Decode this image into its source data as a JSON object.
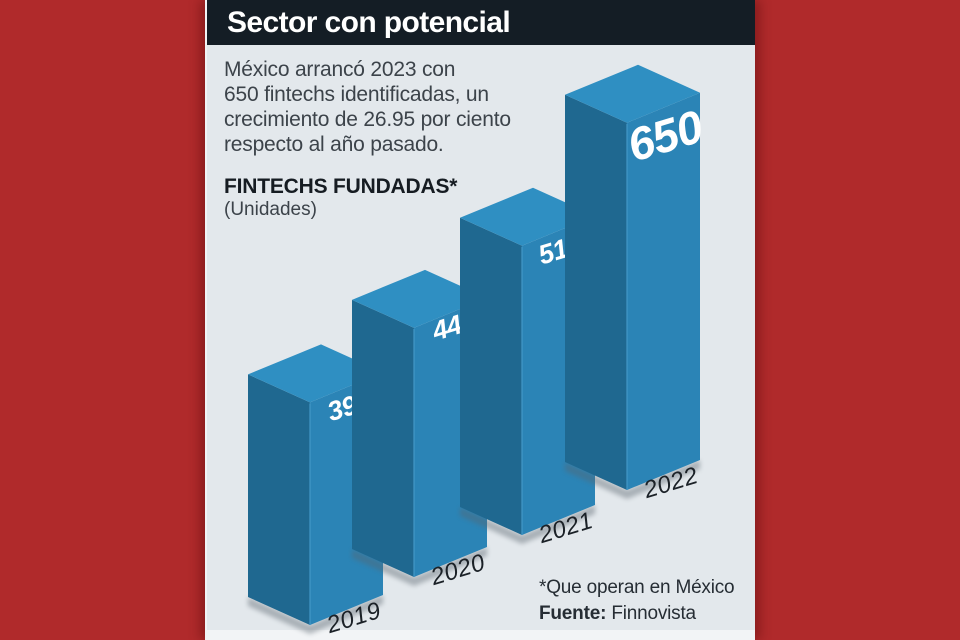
{
  "theme": {
    "background": "#b02a2b",
    "panel": "#e3e8ec",
    "panel_bottom": "#f2f4f6",
    "header_bg": "#141d25",
    "header_text": "#ffffff",
    "body_text": "#3c434a"
  },
  "header": {
    "title": "Sector con potencial"
  },
  "intro": {
    "lines": [
      "México arrancó 2023 con",
      "650 fintechs identificadas, un",
      "crecimiento de 26.95 por ciento",
      "respecto al año pasado."
    ]
  },
  "chart_data": {
    "type": "bar",
    "style": "isometric-3d",
    "title": "FINTECHS FUNDADAS*",
    "units_label": "(Unidades)",
    "categories": [
      "2019",
      "2020",
      "2021",
      "2022"
    ],
    "values": [
      394,
      441,
      512,
      650
    ],
    "ylabel": "Unidades",
    "legend": "none",
    "grid": "off",
    "colors": {
      "face_top": "#2f8fc2",
      "face_right": "#2b84b6",
      "face_left": "#1f6890",
      "edge_highlight": "#4398c8",
      "value_text": "#ffffff",
      "year_text": "#1b2127",
      "shadow": "#59646d"
    }
  },
  "footer": {
    "note": "*Que operan en México",
    "source_label": "Fuente:",
    "source_value": "Finnovista"
  }
}
